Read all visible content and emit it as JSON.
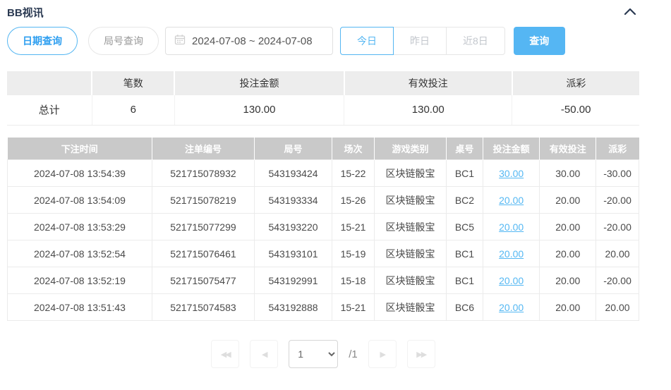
{
  "header": {
    "title": "BB视讯"
  },
  "toolbar": {
    "query_tabs": [
      {
        "label": "日期查询",
        "active": true
      },
      {
        "label": "局号查询",
        "active": false
      }
    ],
    "date_range": "2024-07-08 ~ 2024-07-08",
    "quick_ranges": [
      {
        "label": "今日",
        "active": true
      },
      {
        "label": "昨日",
        "active": false
      },
      {
        "label": "近8日",
        "active": false
      }
    ],
    "search_label": "查询"
  },
  "summary": {
    "columns": [
      "",
      "笔数",
      "投注金额",
      "有效投注",
      "派彩"
    ],
    "row": {
      "label": "总计",
      "count": "6",
      "bet_amount": "130.00",
      "valid_bet": "130.00",
      "payout": "-50.00"
    }
  },
  "table": {
    "columns": [
      "下注时间",
      "注单编号",
      "局号",
      "场次",
      "游戏类别",
      "桌号",
      "投注金额",
      "有效投注",
      "派彩"
    ],
    "rows": [
      {
        "time": "2024-07-08 13:54:39",
        "bet_id": "521715078932",
        "round_id": "543193424",
        "session": "15-22",
        "game_type": "区块链骰宝",
        "table_no": "BC1",
        "bet_amount": "30.00",
        "valid_bet": "30.00",
        "payout": "-30.00"
      },
      {
        "time": "2024-07-08 13:54:09",
        "bet_id": "521715078219",
        "round_id": "543193334",
        "session": "15-26",
        "game_type": "区块链骰宝",
        "table_no": "BC2",
        "bet_amount": "20.00",
        "valid_bet": "20.00",
        "payout": "-20.00"
      },
      {
        "time": "2024-07-08 13:53:29",
        "bet_id": "521715077299",
        "round_id": "543193220",
        "session": "15-21",
        "game_type": "区块链骰宝",
        "table_no": "BC5",
        "bet_amount": "20.00",
        "valid_bet": "20.00",
        "payout": "-20.00"
      },
      {
        "time": "2024-07-08 13:52:54",
        "bet_id": "521715076461",
        "round_id": "543193101",
        "session": "15-19",
        "game_type": "区块链骰宝",
        "table_no": "BC1",
        "bet_amount": "20.00",
        "valid_bet": "20.00",
        "payout": "20.00"
      },
      {
        "time": "2024-07-08 13:52:19",
        "bet_id": "521715075477",
        "round_id": "543192991",
        "session": "15-18",
        "game_type": "区块链骰宝",
        "table_no": "BC1",
        "bet_amount": "20.00",
        "valid_bet": "20.00",
        "payout": "-20.00"
      },
      {
        "time": "2024-07-08 13:51:43",
        "bet_id": "521715074583",
        "round_id": "543192888",
        "session": "15-21",
        "game_type": "区块链骰宝",
        "table_no": "BC6",
        "bet_amount": "20.00",
        "valid_bet": "20.00",
        "payout": "20.00"
      }
    ]
  },
  "pagination": {
    "first_icon": "◀◀",
    "prev_icon": "◀",
    "current_page": "1",
    "page_suffix": "/1",
    "next_icon": "▶",
    "last_icon": "▶▶"
  },
  "colors": {
    "accent_blue": "#54b6f2",
    "link_blue": "#55b8f3",
    "negative_red": "#f56c6c",
    "table_header_gray": "#c9c9c9",
    "summary_header_bg": "#ededed"
  }
}
